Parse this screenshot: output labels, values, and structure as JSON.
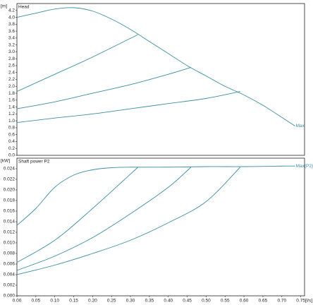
{
  "chart_data": [
    {
      "type": "line",
      "title": "Head",
      "ylabel": "[m]",
      "xlim": [
        0,
        0.76
      ],
      "ylim": [
        0,
        4.4
      ],
      "yticks": [
        {
          "value": 0,
          "label": "0.0"
        },
        0.2,
        0.4,
        0.6,
        0.8,
        {
          "value": 1,
          "label": "1.0"
        },
        1.2,
        1.4,
        1.6,
        1.8,
        {
          "value": 2,
          "label": "2.0"
        },
        2.2,
        2.4,
        2.6,
        2.8,
        {
          "value": 3,
          "label": "3.0"
        },
        3.2,
        3.4,
        3.6,
        3.8,
        {
          "value": 4,
          "label": "4.0"
        },
        4.2
      ],
      "series": [
        {
          "name": "Max",
          "color": "#3b8fa3",
          "x": [
            0,
            0.05,
            0.1,
            0.15,
            0.2,
            0.25,
            0.3,
            0.35,
            0.4,
            0.45,
            0.5,
            0.55,
            0.6,
            0.65,
            0.7,
            0.735
          ],
          "values": [
            4.0,
            4.12,
            4.24,
            4.28,
            4.18,
            3.95,
            3.65,
            3.3,
            2.95,
            2.6,
            2.3,
            2.0,
            1.75,
            1.45,
            1.1,
            0.85
          ]
        },
        {
          "color": "#3b8fa3",
          "x": [
            0,
            0.1,
            0.2,
            0.32
          ],
          "values": [
            1.85,
            2.35,
            2.85,
            3.5
          ]
        },
        {
          "color": "#3b8fa3",
          "x": [
            0,
            0.1,
            0.2,
            0.3,
            0.4,
            0.46
          ],
          "values": [
            1.35,
            1.55,
            1.8,
            2.05,
            2.35,
            2.55
          ]
        },
        {
          "color": "#3b8fa3",
          "x": [
            0,
            0.1,
            0.2,
            0.3,
            0.4,
            0.5,
            0.59
          ],
          "values": [
            0.95,
            1.08,
            1.2,
            1.35,
            1.5,
            1.65,
            1.85
          ]
        }
      ]
    },
    {
      "type": "line",
      "title": "Shaft power P2",
      "ylabel": "[kW]",
      "xlabel": "[l/s]",
      "xlim": [
        0,
        0.76
      ],
      "ylim": [
        0,
        0.026
      ],
      "xticks": [
        {
          "value": 0,
          "label": "0.00"
        },
        0.05,
        {
          "value": 0.1,
          "label": "0.10"
        },
        0.15,
        {
          "value": 0.2,
          "label": "0.20"
        },
        0.25,
        {
          "value": 0.3,
          "label": "0.30"
        },
        0.35,
        {
          "value": 0.4,
          "label": "0.40"
        },
        0.45,
        {
          "value": 0.5,
          "label": "0.50"
        },
        0.55,
        {
          "value": 0.6,
          "label": "0.60"
        },
        0.65,
        {
          "value": 0.7,
          "label": "0.70"
        },
        0.75
      ],
      "yticks": [
        {
          "value": 0,
          "label": "0.000"
        },
        0.002,
        0.004,
        0.006,
        0.008,
        {
          "value": 0.01,
          "label": "0.010"
        },
        0.012,
        0.014,
        0.016,
        0.018,
        {
          "value": 0.02,
          "label": "0.020"
        },
        0.022,
        0.024
      ],
      "series": [
        {
          "name": "Max(P2)",
          "color": "#3b8fa3",
          "x": [
            0,
            0.05,
            0.1,
            0.15,
            0.2,
            0.25,
            0.3,
            0.4,
            0.5,
            0.6,
            0.7,
            0.735
          ],
          "values": [
            0.0133,
            0.0165,
            0.0205,
            0.0228,
            0.0238,
            0.0242,
            0.0243,
            0.0243,
            0.0244,
            0.0244,
            0.0245,
            0.0245
          ]
        },
        {
          "color": "#3b8fa3",
          "x": [
            0,
            0.1,
            0.2,
            0.32
          ],
          "values": [
            0.0063,
            0.0105,
            0.0165,
            0.0243
          ]
        },
        {
          "color": "#3b8fa3",
          "x": [
            0,
            0.1,
            0.2,
            0.3,
            0.4,
            0.46
          ],
          "values": [
            0.0048,
            0.0075,
            0.011,
            0.0155,
            0.0205,
            0.0243
          ]
        },
        {
          "color": "#3b8fa3",
          "x": [
            0,
            0.1,
            0.2,
            0.3,
            0.4,
            0.5,
            0.59
          ],
          "values": [
            0.004,
            0.0058,
            0.008,
            0.0105,
            0.0138,
            0.0178,
            0.0243
          ]
        }
      ]
    }
  ]
}
